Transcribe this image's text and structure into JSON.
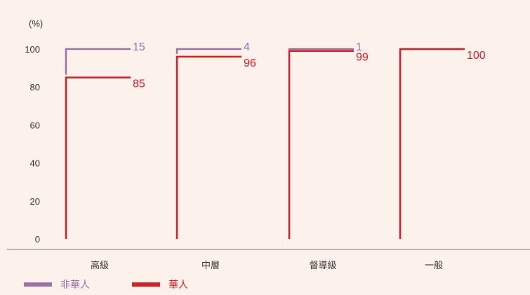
{
  "chart_data": {
    "type": "bar",
    "y_unit": "(%)",
    "ylim": [
      0,
      100
    ],
    "y_ticks": [
      "0",
      "20",
      "40",
      "60",
      "80",
      "100"
    ],
    "categories": [
      "高級",
      "中層",
      "督導級",
      "一般"
    ],
    "series": [
      {
        "name": "非華人",
        "values": [
          15,
          4,
          1,
          0
        ],
        "labels": [
          "15",
          "4",
          "1",
          ""
        ]
      },
      {
        "name": "華人",
        "values": [
          85,
          96,
          99,
          100
        ],
        "labels": [
          "85",
          "96",
          "99",
          "100"
        ]
      }
    ],
    "grid": false,
    "legend_position": "bottom-left"
  },
  "colors": {
    "non_chinese": "#9b72a8",
    "chinese": "#e01b22",
    "axis": "#7a7a7a",
    "text": "#333333",
    "background": "#fdf1ec"
  }
}
